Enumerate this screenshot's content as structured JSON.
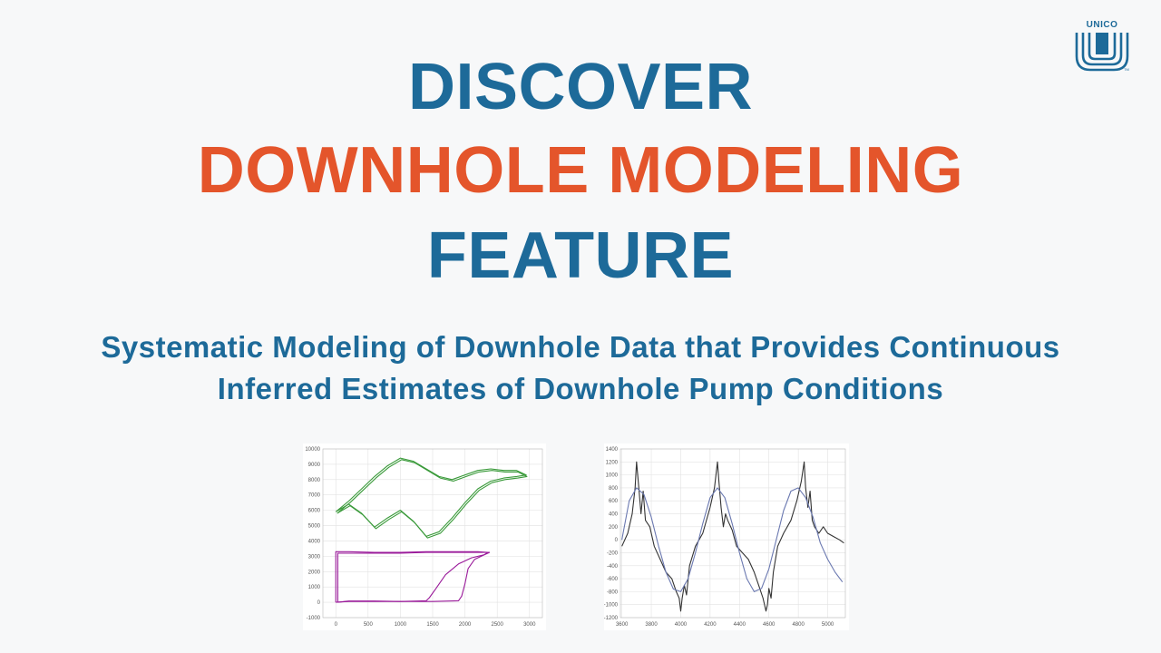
{
  "logo": {
    "text": "UNICO",
    "mark": "TM"
  },
  "headline": {
    "line1": "DISCOVER",
    "line2": "DOWNHOLE MODELING",
    "line3": "FEATURE",
    "subtitle_line1": "Systematic Modeling of Downhole Data that Provides Continuous",
    "subtitle_line2": "Inferred Estimates of Downhole Pump Conditions"
  },
  "colors": {
    "blue": "#1d6a99",
    "orange": "#e4552b",
    "green": "#3a9a3a",
    "purple": "#9a1a9a",
    "dark_line": "#333333",
    "blue_line": "#6a78b0"
  },
  "chart_data": [
    {
      "type": "line",
      "title": "",
      "xlabel": "",
      "ylabel": "",
      "xlim": [
        -200,
        3200
      ],
      "ylim": [
        -1000,
        10000
      ],
      "xticks": [
        0,
        500,
        1000,
        1500,
        2000,
        2500,
        3000
      ],
      "yticks": [
        -1000,
        0,
        1000,
        2000,
        3000,
        4000,
        5000,
        6000,
        7000,
        8000,
        9000,
        10000
      ],
      "grid": true,
      "series": [
        {
          "color": "#3a9a3a",
          "x": [
            0,
            200,
            400,
            600,
            800,
            1000,
            1200,
            1400,
            1600,
            1800,
            2000,
            2200,
            2400,
            2600,
            2800,
            2950,
            2800,
            2600,
            2400,
            2200,
            2000,
            1800,
            1600,
            1400,
            1200,
            1000,
            800,
            600,
            400,
            200,
            0
          ],
          "y": [
            5900,
            6600,
            7400,
            8200,
            8900,
            9400,
            9200,
            8700,
            8200,
            8000,
            8300,
            8600,
            8700,
            8600,
            8600,
            8300,
            8200,
            8100,
            7900,
            7400,
            6500,
            5500,
            4600,
            4300,
            5300,
            6000,
            5500,
            4900,
            5800,
            6400,
            5900
          ]
        },
        {
          "color": "#3a9a3a",
          "x": [
            20,
            220,
            420,
            620,
            820,
            1020,
            1220,
            1420,
            1620,
            1820,
            2020,
            2220,
            2420,
            2620,
            2820,
            2960,
            2820,
            2620,
            2420,
            2220,
            2020,
            1820,
            1620,
            1420,
            1220,
            1020,
            820,
            620,
            420,
            220,
            20
          ],
          "y": [
            5800,
            6500,
            7300,
            8100,
            8800,
            9300,
            9100,
            8600,
            8100,
            7900,
            8200,
            8500,
            8600,
            8500,
            8500,
            8200,
            8100,
            8000,
            7800,
            7300,
            6400,
            5400,
            4500,
            4200,
            5200,
            5900,
            5400,
            4800,
            5700,
            6300,
            5800
          ]
        },
        {
          "color": "#9a1a9a",
          "x": [
            0,
            0,
            200,
            600,
            1000,
            1400,
            1800,
            2200,
            2350,
            2300,
            2100,
            1900,
            1700,
            1550,
            1450,
            1400,
            1000,
            600,
            200,
            0
          ],
          "y": [
            0,
            3300,
            3300,
            3250,
            3250,
            3300,
            3300,
            3300,
            3250,
            3100,
            2900,
            2500,
            1800,
            900,
            300,
            100,
            50,
            50,
            50,
            0
          ]
        },
        {
          "color": "#9a1a9a",
          "x": [
            30,
            30,
            200,
            600,
            1000,
            1400,
            1800,
            2200,
            2380,
            2300,
            2150,
            2050,
            2000,
            1950,
            1900,
            1500,
            1000,
            600,
            200,
            30
          ],
          "y": [
            0,
            3200,
            3200,
            3200,
            3200,
            3250,
            3250,
            3250,
            3250,
            3100,
            2800,
            2200,
            1200,
            400,
            100,
            50,
            50,
            80,
            80,
            0
          ]
        }
      ]
    },
    {
      "type": "line",
      "title": "",
      "xlabel": "",
      "ylabel": "",
      "xlim": [
        3590,
        5120
      ],
      "ylim": [
        -1200,
        1400
      ],
      "xticks": [
        3600,
        3800,
        4000,
        4200,
        4400,
        4600,
        4800,
        5000
      ],
      "yticks": [
        -1200,
        -1000,
        -800,
        -600,
        -400,
        -200,
        0,
        200,
        400,
        600,
        800,
        1000,
        1200,
        1400
      ],
      "grid": true,
      "series": [
        {
          "color": "#333333",
          "x": [
            3600,
            3640,
            3670,
            3690,
            3700,
            3715,
            3730,
            3745,
            3760,
            3790,
            3820,
            3860,
            3900,
            3940,
            3970,
            3990,
            4000,
            4010,
            4025,
            4040,
            4060,
            4100,
            4150,
            4200,
            4230,
            4250,
            4260,
            4275,
            4290,
            4305,
            4320,
            4350,
            4380,
            4420,
            4460,
            4500,
            4530,
            4560,
            4580,
            4590,
            4600,
            4615,
            4630,
            4660,
            4700,
            4750,
            4790,
            4820,
            4840,
            4850,
            4865,
            4880,
            4895,
            4910,
            4940,
            4970,
            5000,
            5040,
            5080,
            5110
          ],
          "y": [
            -100,
            100,
            400,
            800,
            1200,
            800,
            400,
            750,
            300,
            200,
            -100,
            -300,
            -500,
            -600,
            -800,
            -900,
            -1100,
            -900,
            -700,
            -850,
            -400,
            -100,
            100,
            500,
            800,
            1200,
            900,
            500,
            200,
            400,
            300,
            150,
            -100,
            -200,
            -300,
            -500,
            -700,
            -900,
            -1100,
            -1000,
            -750,
            -900,
            -500,
            -100,
            100,
            300,
            600,
            900,
            1200,
            800,
            500,
            750,
            300,
            200,
            100,
            200,
            100,
            50,
            0,
            -50
          ]
        },
        {
          "color": "#6a78b0",
          "x": [
            3600,
            3650,
            3700,
            3750,
            3800,
            3850,
            3900,
            3950,
            4000,
            4050,
            4100,
            4150,
            4200,
            4250,
            4300,
            4350,
            4400,
            4450,
            4500,
            4550,
            4600,
            4650,
            4700,
            4750,
            4800,
            4850,
            4900,
            4950,
            5000,
            5050,
            5100
          ],
          "y": [
            0,
            600,
            800,
            700,
            350,
            -100,
            -500,
            -760,
            -800,
            -600,
            -200,
            250,
            650,
            800,
            650,
            250,
            -200,
            -600,
            -800,
            -750,
            -450,
            0,
            450,
            750,
            800,
            650,
            350,
            -50,
            -300,
            -500,
            -650
          ]
        }
      ]
    }
  ]
}
